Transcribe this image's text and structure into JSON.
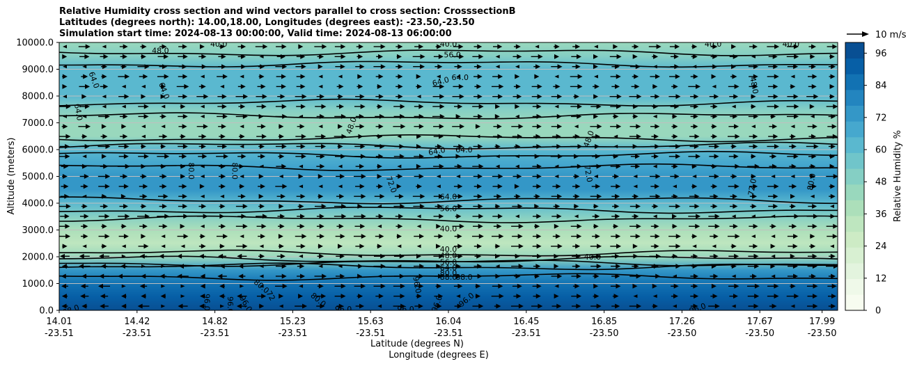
{
  "chart_data": {
    "type": "heatmap",
    "title_lines": [
      "Relative Humidity cross section and wind vectors parallel to cross section: CrosssectionB",
      "Latitudes (degrees north): 14.00,18.00, Longitudes (degrees east): -23.50,-23.50",
      "Simulation start time: 2024-08-13 00:00:00, Valid time: 2024-08-13 06:00:00"
    ],
    "xlabel_lat": "Latitude (degrees N)",
    "xlabel_lon": "Longitude (degrees E)",
    "ylabel": "Altitude (meters)",
    "ylim": [
      0,
      10000
    ],
    "y_ticks": [
      "0.0",
      "1000.0",
      "2000.0",
      "3000.0",
      "4000.0",
      "5000.0",
      "6000.0",
      "7000.0",
      "8000.0",
      "9000.0",
      "10000.0"
    ],
    "x_ticks": [
      {
        "lat": "14.01",
        "lon": "-23.51",
        "pos": 0.0
      },
      {
        "lat": "14.42",
        "lon": "-23.51",
        "pos": 0.1
      },
      {
        "lat": "14.82",
        "lon": "-23.51",
        "pos": 0.2
      },
      {
        "lat": "15.23",
        "lon": "-23.51",
        "pos": 0.3
      },
      {
        "lat": "15.63",
        "lon": "-23.51",
        "pos": 0.4
      },
      {
        "lat": "16.04",
        "lon": "-23.51",
        "pos": 0.5
      },
      {
        "lat": "16.45",
        "lon": "-23.51",
        "pos": 0.6
      },
      {
        "lat": "16.85",
        "lon": "-23.50",
        "pos": 0.7
      },
      {
        "lat": "17.26",
        "lon": "-23.50",
        "pos": 0.8
      },
      {
        "lat": "17.67",
        "lon": "-23.50",
        "pos": 0.9
      },
      {
        "lat": "17.99",
        "lon": "-23.50",
        "pos": 0.98
      }
    ],
    "colorbar": {
      "label": "Relative Humidity %",
      "ticks": [
        "0",
        "12",
        "24",
        "36",
        "48",
        "60",
        "72",
        "84",
        "96"
      ],
      "vmin": 0,
      "vmax": 100,
      "colors": [
        "#f7fcf0",
        "#eff9e9",
        "#e3f4de",
        "#d8f0d2",
        "#cdebc5",
        "#bee6bf",
        "#acdfba",
        "#99d8bd",
        "#85cfc4",
        "#70c5ca",
        "#5ab8cf",
        "#46a8ce",
        "#3497c7",
        "#2385bf",
        "#1272b3",
        "#075fa6",
        "#084f93"
      ]
    },
    "quiver_key": "10 m/s",
    "grid": true,
    "rh_profile": [
      {
        "alt": 0,
        "rh": 95
      },
      {
        "alt": 500,
        "rh": 93
      },
      {
        "alt": 1000,
        "rh": 88
      },
      {
        "alt": 1500,
        "rh": 72
      },
      {
        "alt": 2000,
        "rh": 42
      },
      {
        "alt": 2500,
        "rh": 34
      },
      {
        "alt": 3000,
        "rh": 40
      },
      {
        "alt": 3500,
        "rh": 50
      },
      {
        "alt": 4000,
        "rh": 62
      },
      {
        "alt": 4500,
        "rh": 72
      },
      {
        "alt": 5000,
        "rh": 76
      },
      {
        "alt": 5500,
        "rh": 70
      },
      {
        "alt": 6000,
        "rh": 60
      },
      {
        "alt": 6500,
        "rh": 46
      },
      {
        "alt": 7000,
        "rh": 44
      },
      {
        "alt": 7500,
        "rh": 52
      },
      {
        "alt": 8000,
        "rh": 60
      },
      {
        "alt": 8500,
        "rh": 62
      },
      {
        "alt": 9000,
        "rh": 60
      },
      {
        "alt": 9500,
        "rh": 50
      },
      {
        "alt": 10000,
        "rh": 42
      }
    ],
    "contour_labels": [
      {
        "text": "48.0",
        "x": 0.13,
        "alt": 9700,
        "rot": 0
      },
      {
        "text": "40.0",
        "x": 0.205,
        "alt": 9950,
        "rot": 0
      },
      {
        "text": "40.0",
        "x": 0.5,
        "alt": 9950,
        "rot": 0
      },
      {
        "text": "56.0",
        "x": 0.505,
        "alt": 9550,
        "rot": 0
      },
      {
        "text": "40.0",
        "x": 0.84,
        "alt": 9950,
        "rot": 0
      },
      {
        "text": "40.0",
        "x": 0.94,
        "alt": 9950,
        "rot": 0
      },
      {
        "text": "64.0",
        "x": 0.045,
        "alt": 8600,
        "rot": 70
      },
      {
        "text": "64.0",
        "x": 0.135,
        "alt": 8200,
        "rot": 70
      },
      {
        "text": "64.0",
        "x": 0.49,
        "alt": 8550,
        "rot": -15
      },
      {
        "text": "64.0",
        "x": 0.515,
        "alt": 8700,
        "rot": 0
      },
      {
        "text": "48.0",
        "x": 0.893,
        "alt": 8400,
        "rot": 80
      },
      {
        "text": "64.0",
        "x": 0.025,
        "alt": 7400,
        "rot": 80
      },
      {
        "text": "48.0",
        "x": 0.375,
        "alt": 6900,
        "rot": -70
      },
      {
        "text": "48.0",
        "x": 0.68,
        "alt": 6400,
        "rot": -70
      },
      {
        "text": "64.0",
        "x": 0.485,
        "alt": 5950,
        "rot": -10
      },
      {
        "text": "64.0",
        "x": 0.52,
        "alt": 6000,
        "rot": 0
      },
      {
        "text": "80.0",
        "x": 0.17,
        "alt": 5200,
        "rot": 90
      },
      {
        "text": "80.0",
        "x": 0.226,
        "alt": 5200,
        "rot": 90
      },
      {
        "text": "72.0",
        "x": 0.427,
        "alt": 4700,
        "rot": 70
      },
      {
        "text": "72.0",
        "x": 0.68,
        "alt": 5100,
        "rot": 80
      },
      {
        "text": "72.0",
        "x": 0.89,
        "alt": 4600,
        "rot": -80
      },
      {
        "text": "80.0",
        "x": 0.966,
        "alt": 4800,
        "rot": -80
      },
      {
        "text": "64.0",
        "x": 0.5,
        "alt": 4250,
        "rot": 0
      },
      {
        "text": "56.0",
        "x": 0.5,
        "alt": 3800,
        "rot": 0
      },
      {
        "text": "40.0",
        "x": 0.5,
        "alt": 3050,
        "rot": 0
      },
      {
        "text": "40.0",
        "x": 0.5,
        "alt": 2280,
        "rot": 0
      },
      {
        "text": "48.0",
        "x": 0.5,
        "alt": 2050,
        "rot": 0
      },
      {
        "text": "40.0",
        "x": 0.685,
        "alt": 2000,
        "rot": 0
      },
      {
        "text": "56.0",
        "x": 0.5,
        "alt": 1800,
        "rot": 0
      },
      {
        "text": "64.0",
        "x": 0.5,
        "alt": 1600,
        "rot": 0
      },
      {
        "text": "80.0",
        "x": 0.5,
        "alt": 1400,
        "rot": 0
      },
      {
        "text": "88.0",
        "x": 0.5,
        "alt": 1250,
        "rot": 0
      },
      {
        "text": "88.0",
        "x": 0.52,
        "alt": 1250,
        "rot": 0
      },
      {
        "text": "80.0",
        "x": 0.26,
        "alt": 900,
        "rot": 40
      },
      {
        "text": "72",
        "x": 0.272,
        "alt": 550,
        "rot": 60
      },
      {
        "text": "96.0",
        "x": 0.19,
        "alt": 300,
        "rot": 90
      },
      {
        "text": "96.0",
        "x": 0.22,
        "alt": 200,
        "rot": 90
      },
      {
        "text": "96.0",
        "x": 0.24,
        "alt": 250,
        "rot": 60
      },
      {
        "text": "80.0",
        "x": 0.333,
        "alt": 400,
        "rot": 40
      },
      {
        "text": "96.0",
        "x": 0.365,
        "alt": 50,
        "rot": 0
      },
      {
        "text": "96.0",
        "x": 0.46,
        "alt": 950,
        "rot": 80
      },
      {
        "text": "96.0",
        "x": 0.445,
        "alt": 50,
        "rot": 0
      },
      {
        "text": "96.0",
        "x": 0.485,
        "alt": 250,
        "rot": -70
      },
      {
        "text": "96.0",
        "x": 0.523,
        "alt": 400,
        "rot": -40
      },
      {
        "text": "96.0",
        "x": 0.82,
        "alt": 80,
        "rot": -20
      },
      {
        "text": "88.0",
        "x": 0.015,
        "alt": 20,
        "rot": -20
      }
    ]
  }
}
